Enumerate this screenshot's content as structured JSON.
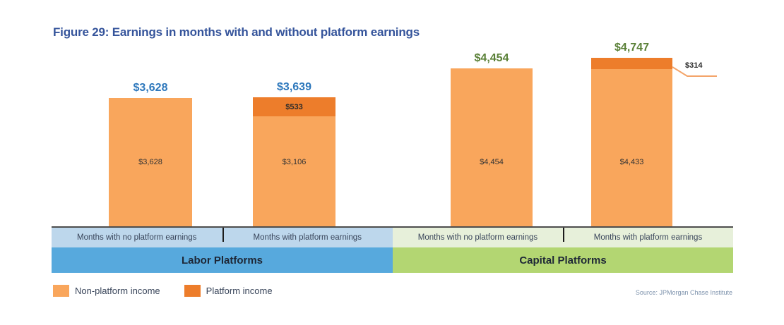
{
  "title": "Figure 29: Earnings in months with and without platform earnings",
  "source": "Source: JPMorgan Chase Institute",
  "colors": {
    "non_platform_income": "#F9A65C",
    "platform_income": "#ED7D2B",
    "labor_total_label": "#2E78BC",
    "capital_total_label": "#5A8037",
    "title_text": "#35549B",
    "labor_category_band": "#BDD7EC",
    "labor_group_band": "#57A9DD",
    "capital_category_band": "#E7F0DA",
    "capital_group_band": "#B3D672",
    "axis_line": "#4D4D4D"
  },
  "chart_data": {
    "type": "bar",
    "stacked": true,
    "title": "Figure 29: Earnings in months with and without platform earnings",
    "unit": "USD per month",
    "legend_position": "bottom-left",
    "ylim": [
      0,
      5000
    ],
    "grid": false,
    "groups": [
      {
        "label": "Labor Platforms",
        "bars": [
          {
            "category": "Months with no platform earnings",
            "total": 3628,
            "total_label": "$3,628",
            "non_platform_income": 3628,
            "non_platform_label": "$3,628",
            "platform_income": 0
          },
          {
            "category": "Months with platform earnings",
            "total": 3639,
            "total_label": "$3,639",
            "non_platform_income": 3106,
            "non_platform_label": "$3,106",
            "platform_income": 533,
            "platform_label": "$533"
          }
        ]
      },
      {
        "label": "Capital Platforms",
        "bars": [
          {
            "category": "Months with no platform earnings",
            "total": 4454,
            "total_label": "$4,454",
            "non_platform_income": 4454,
            "non_platform_label": "$4,454",
            "platform_income": 0
          },
          {
            "category": "Months with platform earnings",
            "total": 4747,
            "total_label": "$4,747",
            "non_platform_income": 4433,
            "non_platform_label": "$4,433",
            "platform_income": 314,
            "platform_label": "$314",
            "platform_label_callout": true
          }
        ]
      }
    ],
    "legend": [
      {
        "label": "Non-platform income",
        "color": "#F9A65C"
      },
      {
        "label": "Platform income",
        "color": "#ED7D2B"
      }
    ]
  }
}
